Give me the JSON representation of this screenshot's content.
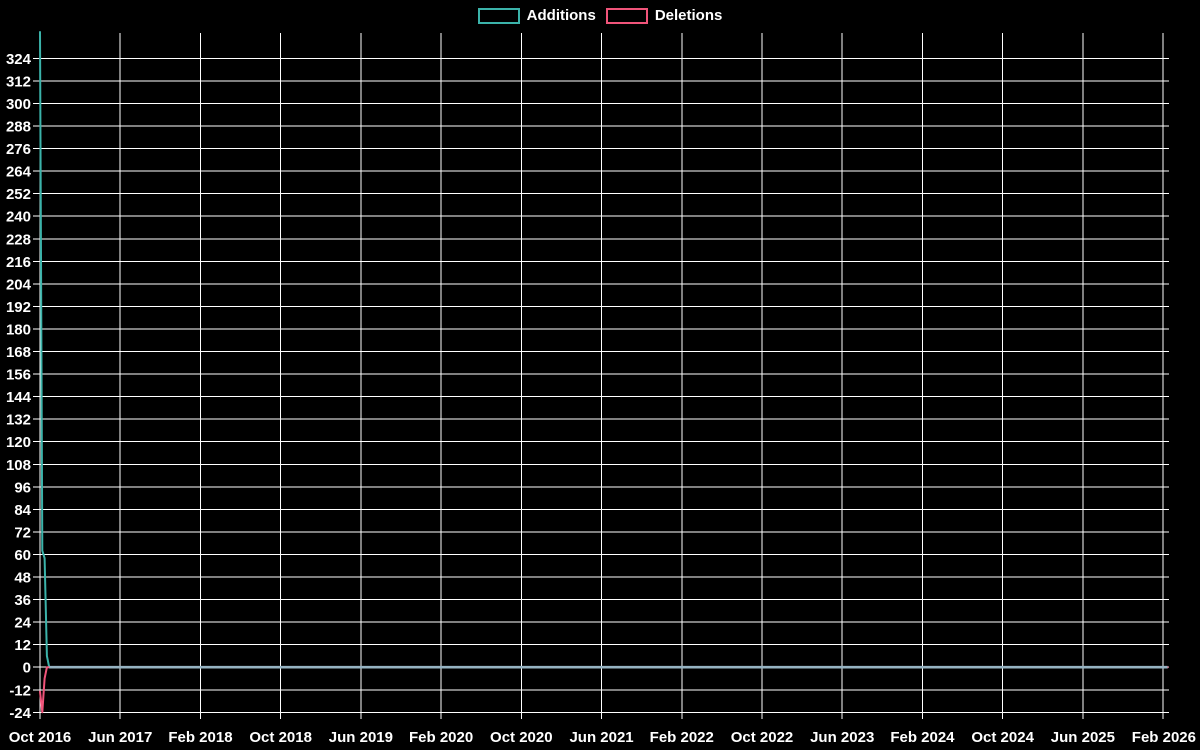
{
  "legend": {
    "items": [
      {
        "label": "Additions",
        "color": "#3bb3aa"
      },
      {
        "label": "Deletions",
        "color": "#f0547a"
      }
    ]
  },
  "chart_data": {
    "type": "line",
    "title": "",
    "description": "Weekly code additions and deletions over time; single burst of activity in Oct 2016, zero afterwards through Feb 2026",
    "legend_position": "top-center",
    "background": "#000000",
    "grid": true,
    "grid_color": "#ffffff",
    "zero_line_color": "#96b3c2",
    "x_axis": {
      "unit": "weeks",
      "start_week": "2016-10-02",
      "total_weeks": 490,
      "tick_labels": [
        "Oct 2016",
        "Jun 2017",
        "Feb 2018",
        "Oct 2018",
        "Jun 2019",
        "Feb 2020",
        "Oct 2020",
        "Jun 2021",
        "Feb 2022",
        "Oct 2022",
        "Jun 2023",
        "Feb 2024",
        "Oct 2024",
        "Jun 2025",
        "Feb 2026"
      ]
    },
    "y_axis": {
      "min": -24,
      "max": 324,
      "step": 12,
      "tick_labels": [
        "-24",
        "-12",
        "0",
        "12",
        "24",
        "36",
        "48",
        "60",
        "72",
        "84",
        "96",
        "108",
        "120",
        "132",
        "144",
        "156",
        "168",
        "180",
        "192",
        "204",
        "216",
        "228",
        "240",
        "252",
        "264",
        "276",
        "288",
        "300",
        "312",
        "324"
      ]
    },
    "series": [
      {
        "name": "Additions",
        "color": "#3bb3aa",
        "values_head": [
          338,
          62,
          58,
          6
        ],
        "remaining_values": 0
      },
      {
        "name": "Deletions",
        "color": "#f0547a",
        "values_head": [
          -13,
          -24,
          -6
        ],
        "remaining_values": 0
      }
    ]
  }
}
